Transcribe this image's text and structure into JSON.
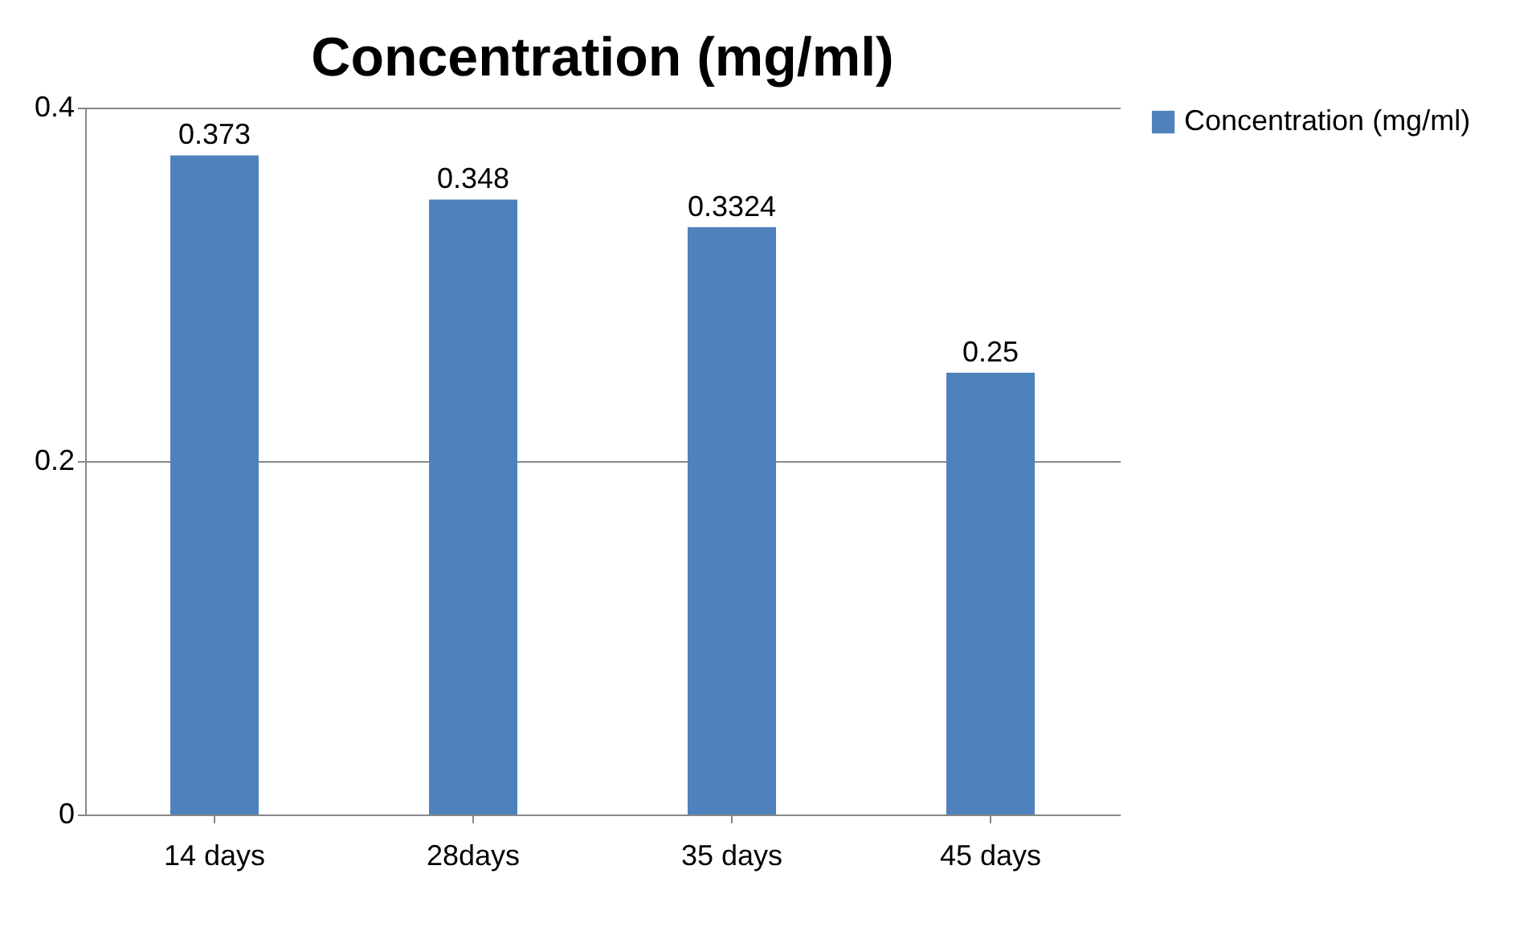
{
  "chart_data": {
    "type": "bar",
    "title": "Concentration (mg/ml)",
    "categories": [
      "14 days",
      "28days",
      "35 days",
      "45 days"
    ],
    "series": [
      {
        "name": "Concentration (mg/ml)",
        "color": "#4f81bd",
        "values": [
          0.373,
          0.348,
          0.3324,
          0.25
        ]
      }
    ],
    "ylim": [
      0,
      0.4
    ],
    "yticks": [
      0,
      0.2,
      0.4
    ],
    "grid": "y",
    "legend": "right",
    "data_labels": true
  }
}
